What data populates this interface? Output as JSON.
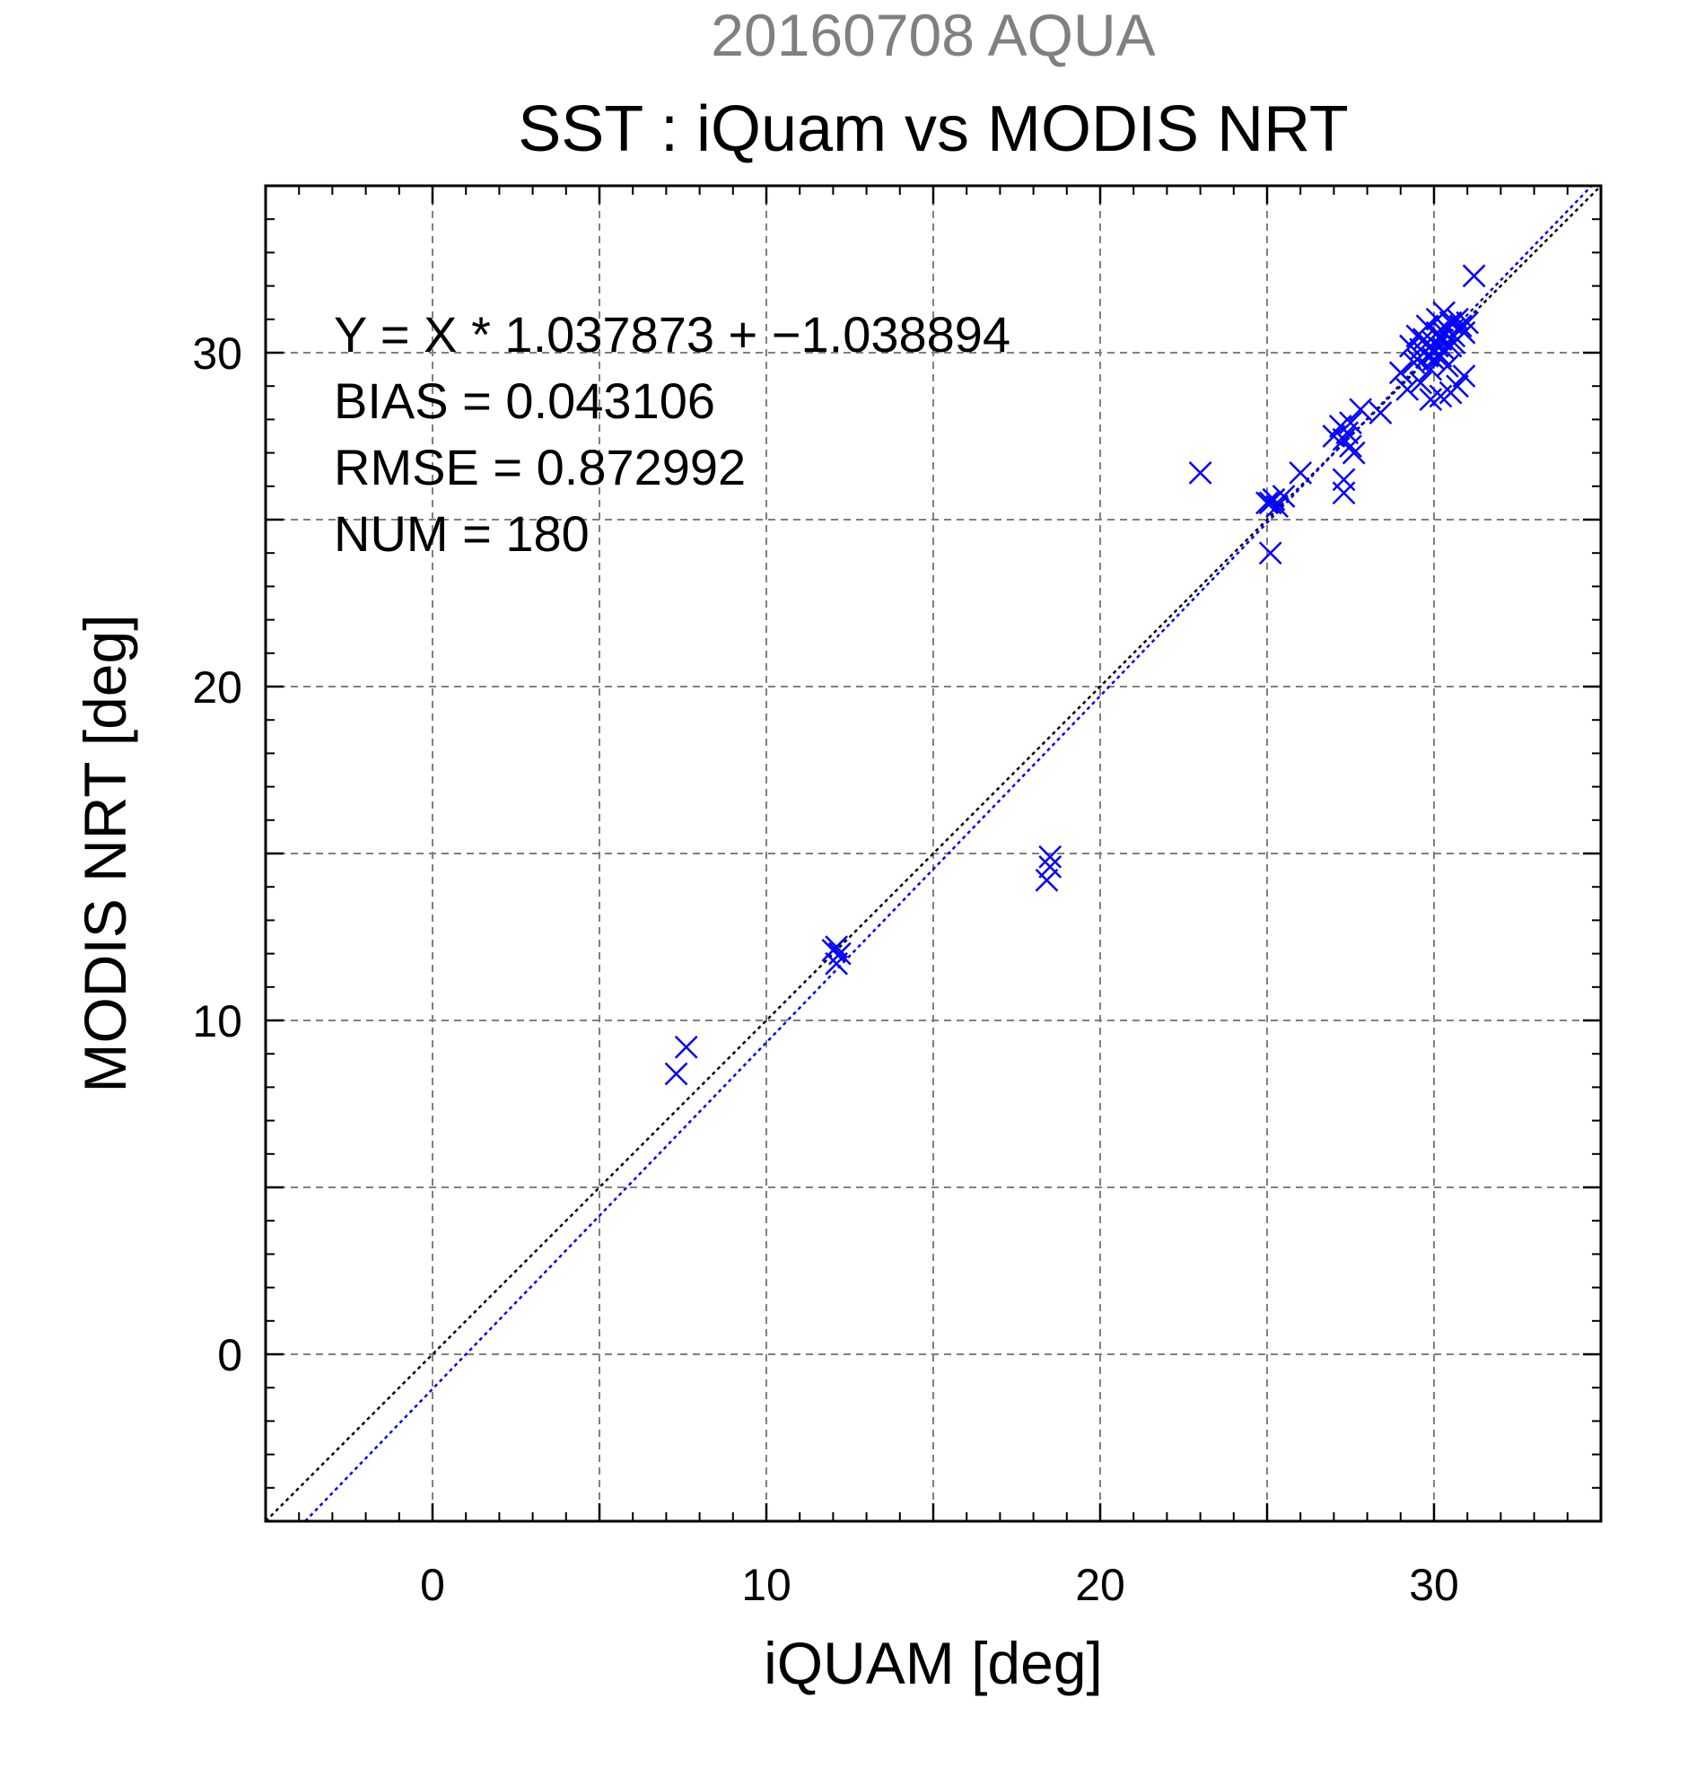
{
  "chart_data": {
    "type": "scatter",
    "supertitle": "20160708 AQUA",
    "title": "SST : iQuam vs MODIS NRT",
    "xlabel": "iQUAM [deg]",
    "ylabel": "MODIS NRT [deg]",
    "xlim": [
      -5,
      35
    ],
    "ylim": [
      -5,
      35
    ],
    "xticks": [
      0,
      10,
      20,
      30
    ],
    "yticks": [
      0,
      10,
      20,
      30
    ],
    "grid": true,
    "marker": "x",
    "colors": {
      "points": "#0000ff",
      "fit_line": "#0000ff",
      "one_to_one": "#000000",
      "supertitle": "#808080",
      "grid": "#808080"
    },
    "stats": [
      "Y = X * 1.037873 + −1.038894",
      "BIAS = 0.043106",
      "RMSE = 0.872992",
      "NUM = 180"
    ],
    "fit": {
      "slope": 1.037873,
      "intercept": -1.038894
    },
    "series": [
      {
        "points": [
          [
            7.3,
            8.4
          ],
          [
            7.6,
            9.2
          ],
          [
            12.0,
            12.1
          ],
          [
            12.1,
            12.2
          ],
          [
            12.2,
            12.0
          ],
          [
            12.1,
            11.7
          ],
          [
            18.4,
            14.2
          ],
          [
            18.5,
            14.6
          ],
          [
            18.5,
            14.9
          ],
          [
            23.0,
            26.4
          ],
          [
            25.0,
            25.5
          ],
          [
            25.1,
            25.5
          ],
          [
            25.2,
            25.6
          ],
          [
            25.3,
            25.4
          ],
          [
            25.1,
            24.0
          ],
          [
            25.5,
            25.7
          ],
          [
            26.0,
            26.4
          ],
          [
            27.0,
            27.5
          ],
          [
            27.2,
            27.8
          ],
          [
            27.3,
            27.4
          ],
          [
            27.4,
            27.6
          ],
          [
            27.5,
            27.2
          ],
          [
            27.3,
            26.2
          ],
          [
            27.3,
            25.8
          ],
          [
            27.6,
            27.0
          ],
          [
            27.8,
            28.3
          ],
          [
            27.5,
            27.9
          ],
          [
            28.4,
            28.2
          ],
          [
            29.0,
            29.4
          ],
          [
            29.2,
            28.9
          ],
          [
            29.3,
            30.2
          ],
          [
            29.4,
            29.7
          ],
          [
            29.5,
            30.5
          ],
          [
            29.6,
            29.1
          ],
          [
            29.7,
            30.0
          ],
          [
            29.8,
            30.8
          ],
          [
            29.9,
            29.5
          ],
          [
            29.9,
            28.6
          ],
          [
            30.0,
            30.3
          ],
          [
            30.0,
            29.8
          ],
          [
            30.1,
            31.0
          ],
          [
            30.1,
            30.6
          ],
          [
            30.2,
            29.9
          ],
          [
            30.2,
            30.4
          ],
          [
            30.3,
            31.2
          ],
          [
            30.3,
            30.1
          ],
          [
            30.4,
            30.7
          ],
          [
            30.4,
            29.6
          ],
          [
            30.5,
            30.9
          ],
          [
            30.5,
            30.2
          ],
          [
            30.6,
            30.5
          ],
          [
            30.7,
            31.0
          ],
          [
            30.8,
            30.8
          ],
          [
            30.9,
            30.6
          ],
          [
            31.0,
            30.9
          ],
          [
            30.5,
            28.8
          ],
          [
            30.7,
            29.0
          ],
          [
            30.9,
            29.3
          ],
          [
            30.2,
            28.7
          ],
          [
            29.6,
            30.1
          ],
          [
            29.8,
            29.9
          ],
          [
            30.0,
            30.0
          ],
          [
            30.1,
            30.2
          ],
          [
            29.7,
            30.4
          ],
          [
            30.3,
            30.6
          ],
          [
            29.5,
            29.8
          ],
          [
            30.6,
            30.3
          ],
          [
            31.2,
            32.3
          ]
        ]
      }
    ]
  }
}
